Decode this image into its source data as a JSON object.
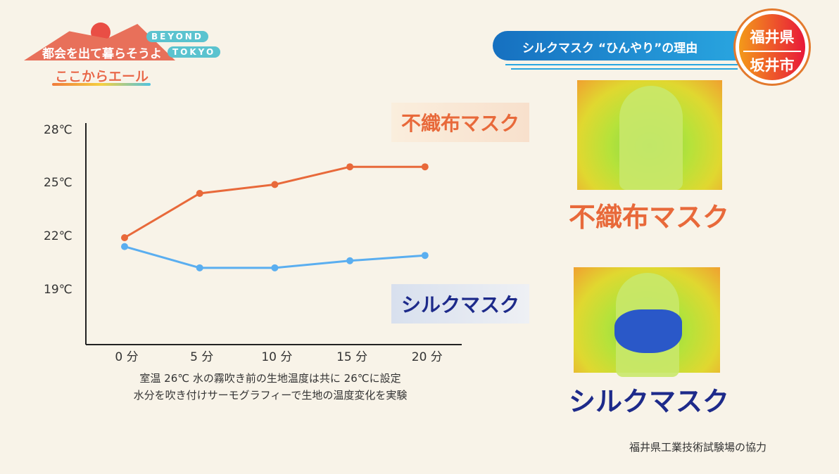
{
  "logo": {
    "main": "都会を出て暮らそうよ",
    "beyond": "BEYOND",
    "tokyo": "TOKYO",
    "sub": "ここからエール"
  },
  "title": "シルクマスク “ひんやり”の理由",
  "badge": {
    "pref": "福井県",
    "city": "坂井市"
  },
  "chart_data": {
    "type": "line",
    "x": [
      "0 分",
      "5 分",
      "10 分",
      "15 分",
      "20 分"
    ],
    "yticks": [
      "28℃",
      "25℃",
      "22℃",
      "19℃"
    ],
    "ytick_values": [
      28,
      25,
      22,
      19
    ],
    "ylim": [
      16,
      28
    ],
    "series": [
      {
        "name": "不織布マスク",
        "color": "#e8693a",
        "values": [
          22,
          24.5,
          25,
          26,
          26
        ]
      },
      {
        "name": "シルクマスク",
        "color": "#5aaef0",
        "values": [
          21.5,
          20.3,
          20.3,
          20.7,
          21
        ]
      }
    ],
    "notes": [
      "室温 26℃ 水の霧吹き前の生地温度は共に 26℃に設定",
      "水分を吹き付けサーモグラフィーで生地の温度変化を実験"
    ]
  },
  "images": {
    "nonwoven_caption": "不織布マスク",
    "silk_caption": "シルクマスク"
  },
  "credit": "福井県工業技術試験場の協力"
}
